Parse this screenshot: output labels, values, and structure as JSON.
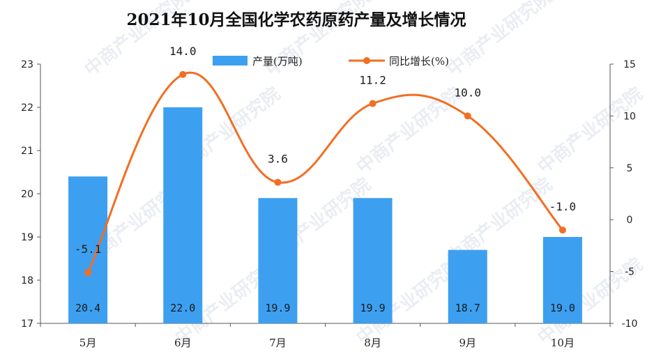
{
  "chart_data": {
    "type": "bar",
    "title": "2021年10月全国化学农药原药产量及增长情况",
    "categories": [
      "5月",
      "6月",
      "7月",
      "8月",
      "9月",
      "10月"
    ],
    "series": [
      {
        "name": "产量(万吨)",
        "type": "bar",
        "axis": "left",
        "values": [
          20.4,
          22.0,
          19.9,
          19.9,
          18.7,
          19.0
        ],
        "labels": [
          "20.4",
          "22.0",
          "19.9",
          "19.9",
          "18.7",
          "19.0"
        ]
      },
      {
        "name": "同比增长(%)",
        "type": "line",
        "axis": "right",
        "values": [
          -5.1,
          14.0,
          3.6,
          11.2,
          10.0,
          -1.0
        ],
        "labels": [
          "-5.1",
          "14.0",
          "3.6",
          "11.2",
          "10.0",
          "-1.0"
        ]
      }
    ],
    "ylim_left": [
      17,
      23
    ],
    "yticks_left": [
      "17",
      "18",
      "19",
      "20",
      "21",
      "22",
      "23"
    ],
    "ylim_right": [
      -10,
      15
    ],
    "yticks_right": [
      "-10",
      "-5",
      "0",
      "5",
      "10",
      "15"
    ],
    "legend_position": "top-center",
    "grid": false,
    "colors": {
      "bar": "#3d9ff0",
      "line": "#f26e22"
    }
  },
  "watermark": "中商产业研究院"
}
